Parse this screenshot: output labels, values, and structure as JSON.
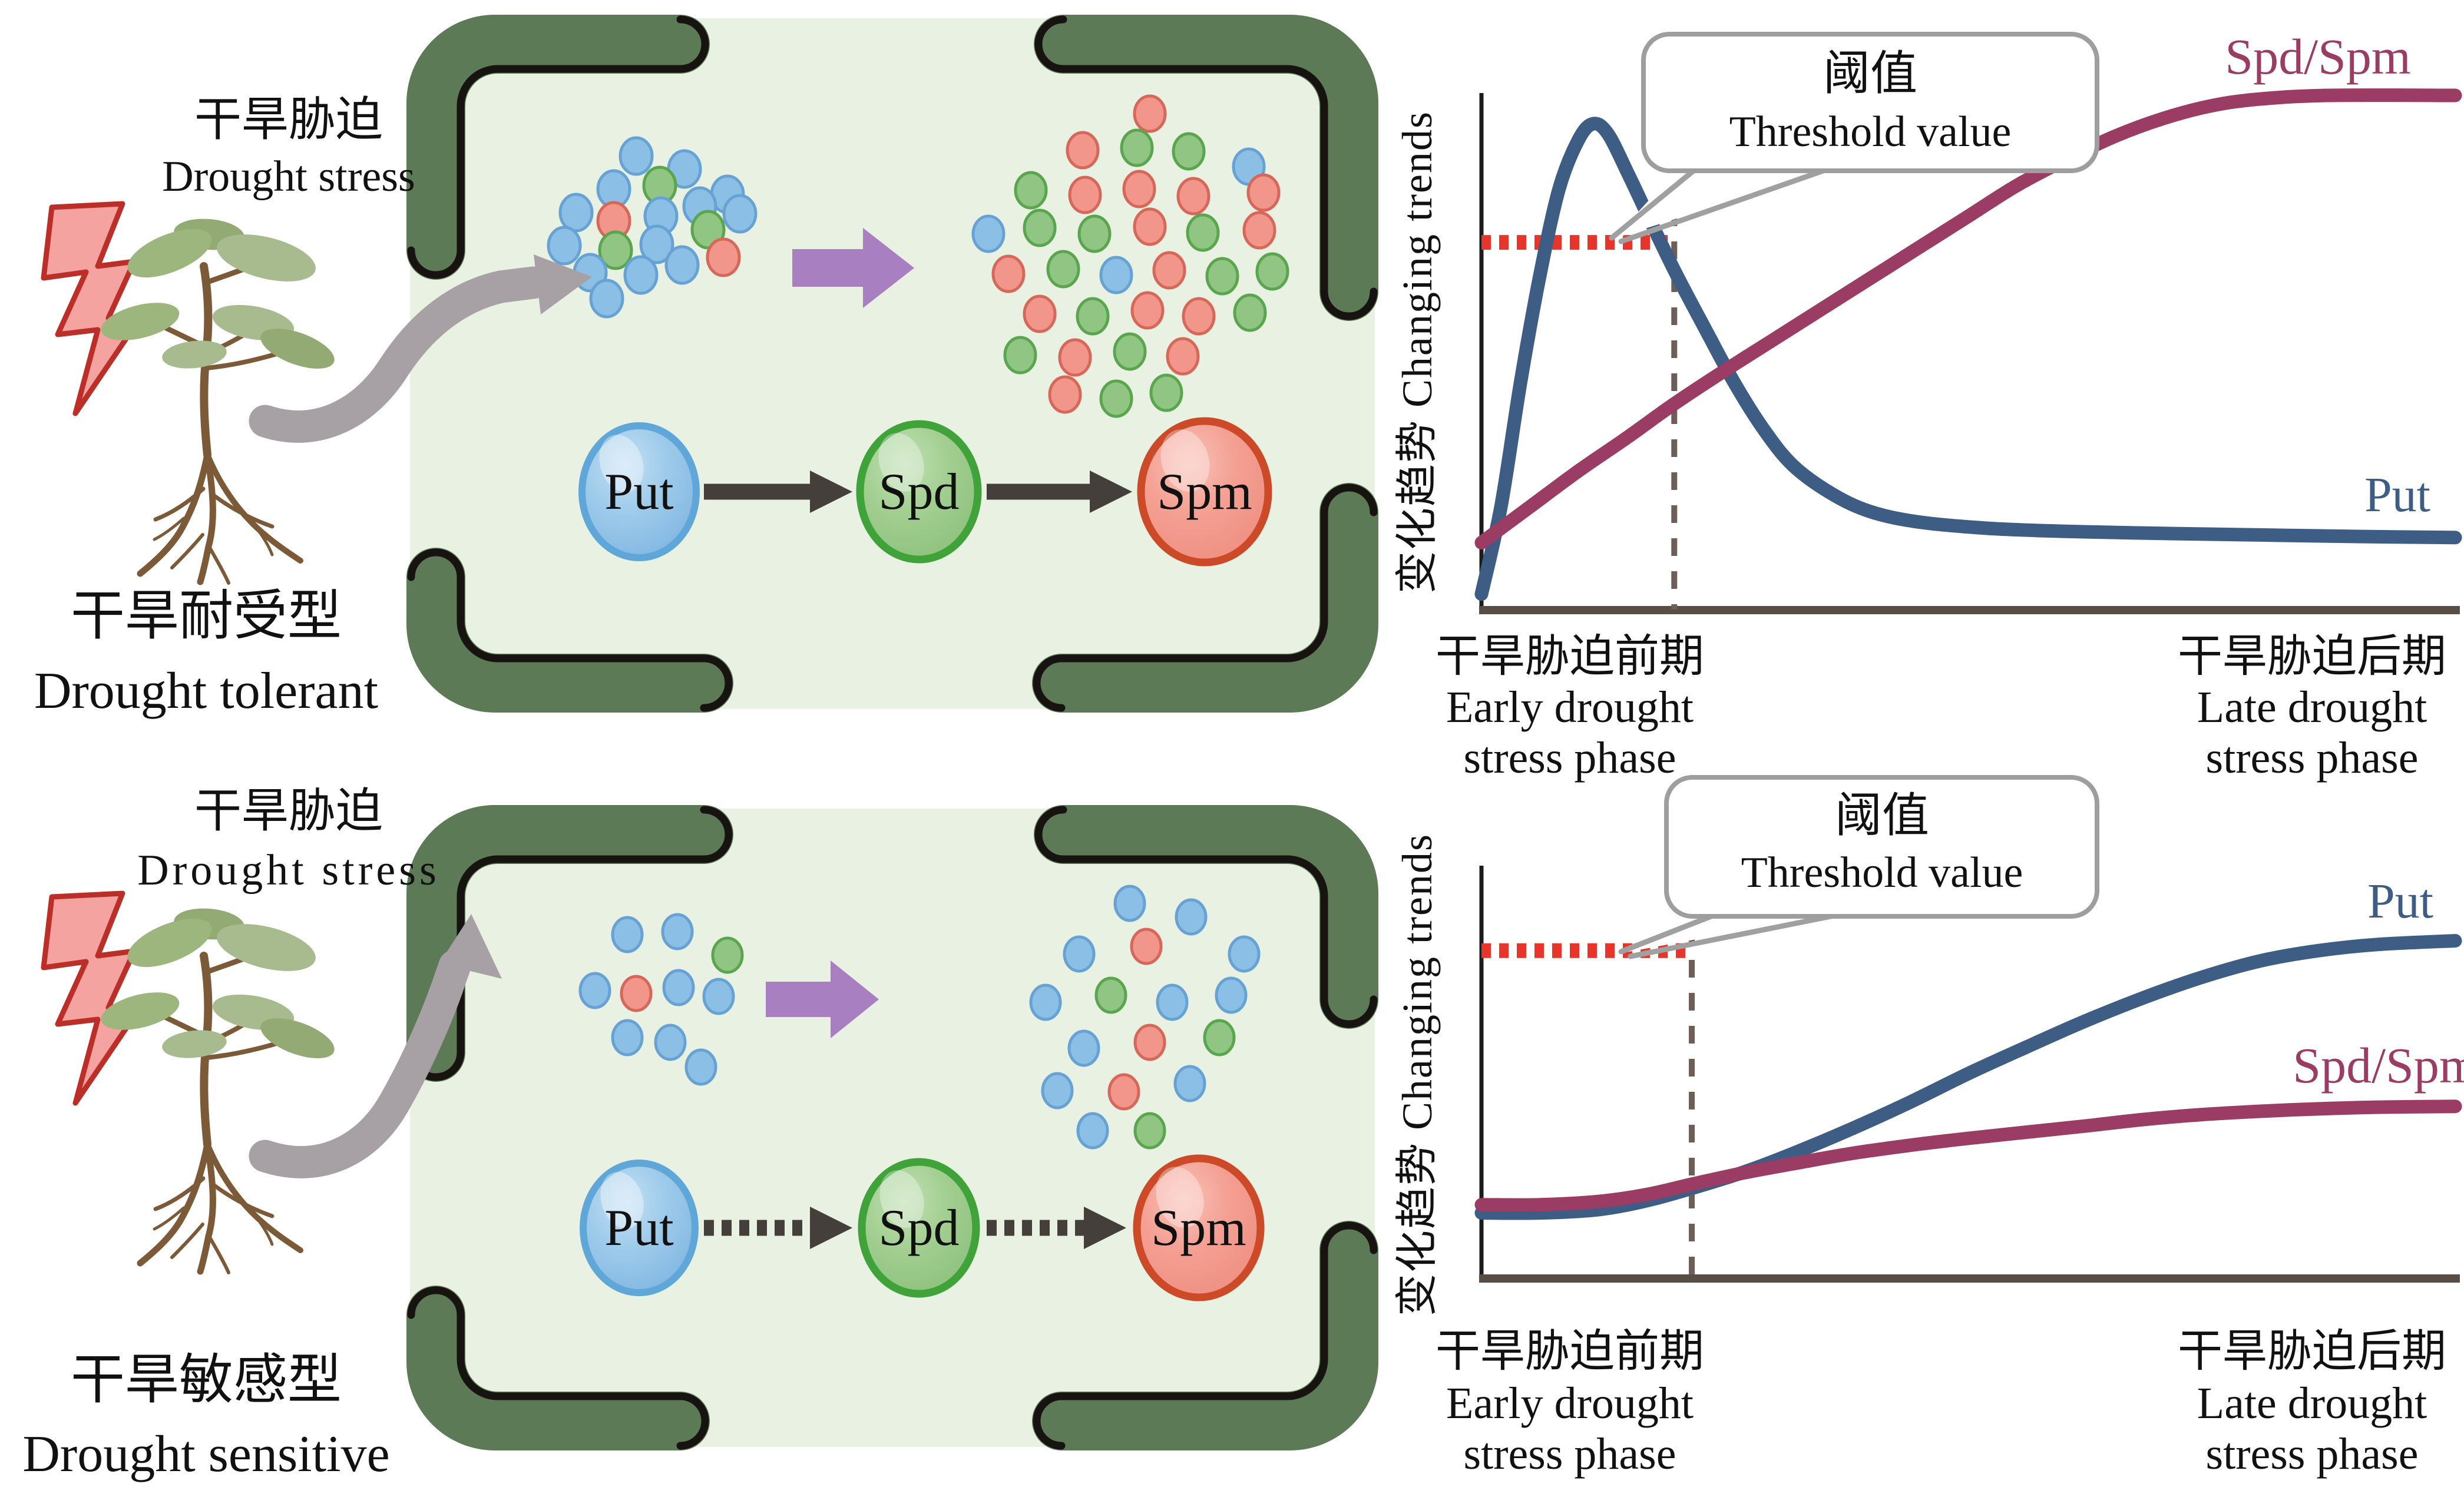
{
  "left_top": {
    "title_zh": "干旱胁迫",
    "title_en": "Drought stress",
    "type_zh": "干旱耐受型",
    "type_en": "Drought tolerant"
  },
  "left_bottom": {
    "title_zh": "干旱胁迫",
    "title_en": "Drought stress",
    "type_zh": "干旱敏感型",
    "type_en": "Drought sensitive"
  },
  "pathway": {
    "nodes": [
      {
        "label": "Put",
        "color": "#8fc2e8"
      },
      {
        "label": "Spd",
        "color": "#9ccb8d"
      },
      {
        "label": "Spm",
        "color": "#f29a8d"
      }
    ],
    "tolerant_arrow_style": "solid",
    "sensitive_arrow_style": "dashed"
  },
  "clusters": {
    "tolerant_before": [
      "blue",
      "blue",
      "blue",
      "green",
      "blue",
      "blue",
      "red",
      "blue",
      "blue",
      "blue",
      "green",
      "blue",
      "green",
      "blue",
      "blue",
      "blue",
      "blue",
      "red",
      "blue"
    ],
    "tolerant_after": [
      "red",
      "red",
      "green",
      "green",
      "blue",
      "green",
      "red",
      "red",
      "red",
      "red",
      "blue",
      "green",
      "green",
      "red",
      "green",
      "red",
      "red",
      "green",
      "blue",
      "red",
      "green",
      "green",
      "red",
      "green",
      "red",
      "red",
      "green",
      "green",
      "red",
      "green",
      "red",
      "red",
      "green",
      "green"
    ],
    "sensitive_before": [
      "blue",
      "blue",
      "green",
      "blue",
      "red",
      "blue",
      "blue",
      "blue",
      "blue",
      "blue"
    ],
    "sensitive_after": [
      "blue",
      "blue",
      "blue",
      "red",
      "blue",
      "blue",
      "green",
      "blue",
      "blue",
      "blue",
      "red",
      "green",
      "blue",
      "red",
      "blue",
      "green",
      "blue"
    ]
  },
  "colors": {
    "cell_fill": "#e9f1e2",
    "cell_wall": "#5c7a55",
    "cell_wall_line": "#161310",
    "dot_blue": "#8cbfe6",
    "dot_green": "#90c583",
    "dot_red": "#f2958b",
    "accumulation_arrow": "#a87fc0",
    "stress_arrow": "#a7a1a6",
    "lightning_fill": "#f4a3a0",
    "lightning_stroke": "#bb2f28",
    "threshold_line": "#e8352b",
    "phase_divider": "#6d5f58",
    "put_curve": "#3e5d84",
    "spdspm_curve": "#9a3c63"
  },
  "chart_data": [
    {
      "type": "line",
      "panel": "drought-tolerant",
      "ylabel": "变化趋势 Changing trends",
      "x_left_zh": "干旱胁迫前期",
      "x_left_en1": "Early drought",
      "x_left_en2": "stress phase",
      "x_right_zh": "干旱胁迫后期",
      "x_right_en1": "Late drought",
      "x_right_en2": "stress phase",
      "threshold_zh": "阈值",
      "threshold_en": "Threshold value",
      "threshold": {
        "value": 0.714,
        "x_end": 0.198
      },
      "xlim": [
        0,
        1
      ],
      "ylim": [
        0,
        1
      ],
      "grid": false,
      "series": [
        {
          "name": "Put",
          "color": "#3e5d84",
          "points": [
            [
              0,
              0.03
            ],
            [
              0.02,
              0.2
            ],
            [
              0.04,
              0.44
            ],
            [
              0.06,
              0.65
            ],
            [
              0.08,
              0.82
            ],
            [
              0.1,
              0.915
            ],
            [
              0.115,
              0.945
            ],
            [
              0.13,
              0.925
            ],
            [
              0.15,
              0.85
            ],
            [
              0.17,
              0.77
            ],
            [
              0.198,
              0.66
            ],
            [
              0.23,
              0.545
            ],
            [
              0.26,
              0.44
            ],
            [
              0.29,
              0.35
            ],
            [
              0.32,
              0.28
            ],
            [
              0.36,
              0.225
            ],
            [
              0.4,
              0.19
            ],
            [
              0.45,
              0.17
            ],
            [
              0.52,
              0.158
            ],
            [
              0.6,
              0.152
            ],
            [
              0.7,
              0.148
            ],
            [
              0.8,
              0.145
            ],
            [
              0.9,
              0.142
            ],
            [
              1,
              0.14
            ]
          ]
        },
        {
          "name": "Spd/Spm",
          "color": "#9a3c63",
          "points": [
            [
              0,
              0.13
            ],
            [
              0.05,
              0.2
            ],
            [
              0.1,
              0.27
            ],
            [
              0.15,
              0.335
            ],
            [
              0.198,
              0.4
            ],
            [
              0.25,
              0.465
            ],
            [
              0.3,
              0.525
            ],
            [
              0.35,
              0.585
            ],
            [
              0.4,
              0.645
            ],
            [
              0.45,
              0.705
            ],
            [
              0.5,
              0.765
            ],
            [
              0.55,
              0.825
            ],
            [
              0.6,
              0.875
            ],
            [
              0.65,
              0.92
            ],
            [
              0.7,
              0.955
            ],
            [
              0.75,
              0.98
            ],
            [
              0.8,
              0.993
            ],
            [
              0.87,
              1.0
            ],
            [
              1,
              1.0
            ]
          ]
        }
      ]
    },
    {
      "type": "line",
      "panel": "drought-sensitive",
      "ylabel": "变化趋势 Changing trends",
      "x_left_zh": "干旱胁迫前期",
      "x_left_en1": "Early drought",
      "x_left_en2": "stress phase",
      "x_right_zh": "干旱胁迫后期",
      "x_right_en1": "Late drought",
      "x_right_en2": "stress phase",
      "threshold_zh": "阈值",
      "threshold_en": "Threshold value",
      "threshold": {
        "value": 0.8,
        "x_end": 0.216
      },
      "xlim": [
        0,
        1
      ],
      "ylim": [
        0,
        1
      ],
      "grid": false,
      "series": [
        {
          "name": "Put",
          "color": "#3e5d84",
          "points": [
            [
              0,
              0.16
            ],
            [
              0.06,
              0.16
            ],
            [
              0.12,
              0.168
            ],
            [
              0.17,
              0.19
            ],
            [
              0.216,
              0.22
            ],
            [
              0.27,
              0.26
            ],
            [
              0.32,
              0.305
            ],
            [
              0.38,
              0.365
            ],
            [
              0.44,
              0.43
            ],
            [
              0.5,
              0.5
            ],
            [
              0.56,
              0.565
            ],
            [
              0.62,
              0.628
            ],
            [
              0.68,
              0.685
            ],
            [
              0.74,
              0.735
            ],
            [
              0.8,
              0.775
            ],
            [
              0.86,
              0.8
            ],
            [
              0.92,
              0.815
            ],
            [
              1,
              0.824
            ]
          ]
        },
        {
          "name": "Spd/Spm",
          "color": "#9a3c63",
          "points": [
            [
              0,
              0.18
            ],
            [
              0.06,
              0.18
            ],
            [
              0.12,
              0.188
            ],
            [
              0.17,
              0.205
            ],
            [
              0.216,
              0.23
            ],
            [
              0.27,
              0.258
            ],
            [
              0.32,
              0.28
            ],
            [
              0.38,
              0.305
            ],
            [
              0.44,
              0.325
            ],
            [
              0.5,
              0.342
            ],
            [
              0.56,
              0.357
            ],
            [
              0.62,
              0.372
            ],
            [
              0.68,
              0.388
            ],
            [
              0.74,
              0.4
            ],
            [
              0.8,
              0.408
            ],
            [
              0.86,
              0.414
            ],
            [
              0.92,
              0.418
            ],
            [
              1,
              0.42
            ]
          ]
        }
      ]
    }
  ]
}
